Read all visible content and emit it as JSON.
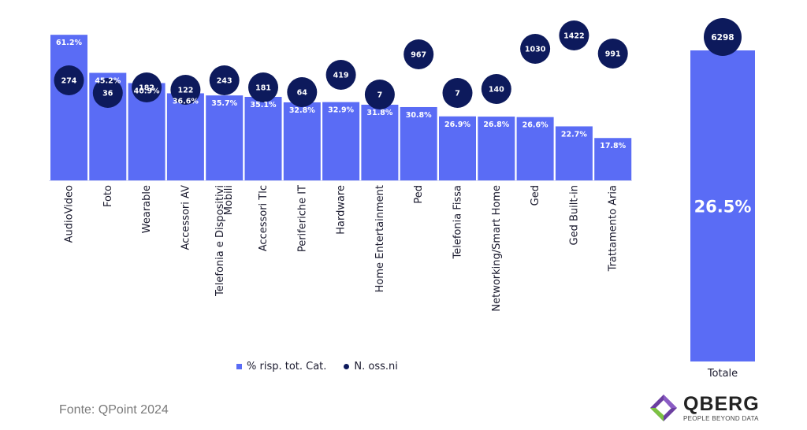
{
  "chart_data": {
    "type": "bar",
    "categories": [
      "AudioVideo",
      "Foto",
      "Wearable",
      "Accessori AV",
      "Telefonia e Dispositivi Mobili",
      "Accessori Tlc",
      "Periferiche IT",
      "Hardware",
      "Home Entertainment",
      "Ped",
      "Telefonia Fissa",
      "Networking/Smart Home",
      "Ged",
      "Ged Built-in",
      "Trattamento Aria"
    ],
    "category_lines": [
      [
        "AudioVideo"
      ],
      [
        "Foto"
      ],
      [
        "Wearable"
      ],
      [
        "Accessori AV"
      ],
      [
        "Telefonia e Dispositivi",
        "Mobili"
      ],
      [
        "Accessori Tlc"
      ],
      [
        "Periferiche IT"
      ],
      [
        "Hardware"
      ],
      [
        "Home Entertainment"
      ],
      [
        "Ped"
      ],
      [
        "Telefonia Fissa"
      ],
      [
        "Networking/Smart Home"
      ],
      [
        "Ged"
      ],
      [
        "Ged Built-in"
      ],
      [
        "Trattamento Aria"
      ]
    ],
    "series": [
      {
        "name": "% risp. tot. Cat.",
        "values": [
          61.2,
          45.2,
          40.9,
          36.6,
          35.7,
          35.1,
          32.8,
          32.9,
          31.8,
          30.8,
          26.9,
          26.8,
          26.6,
          22.7,
          17.8
        ],
        "labels": [
          "61.2%",
          "45.2%",
          "40.9%",
          "36.6%",
          "35.7%",
          "35.1%",
          "32.8%",
          "32.9%",
          "31.8%",
          "30.8%",
          "26.9%",
          "26.8%",
          "26.6%",
          "22.7%",
          "17.8%"
        ]
      },
      {
        "name": "N. oss.ni",
        "values": [
          274,
          36,
          182,
          122,
          243,
          181,
          64,
          419,
          7,
          967,
          7,
          140,
          1030,
          1422,
          991
        ],
        "labels": [
          "274",
          "36",
          "182",
          "122",
          "243",
          "181",
          "64",
          "419",
          "7",
          "967",
          "7",
          "140",
          "1030",
          "1422",
          "991"
        ]
      }
    ],
    "total": {
      "category": "Totale",
      "value": 26.5,
      "label": "26.5%",
      "observations": 6298,
      "observations_label": "6298"
    },
    "legend_position": "bottom",
    "grid": false,
    "colors": {
      "bar": "#5a6cf5",
      "dot": "#0d1a5c",
      "bar_label": "#ffffff"
    }
  },
  "source": "Fonte: QPoint 2024",
  "logo": {
    "name": "QBERG",
    "tagline": "PEOPLE BEYOND DATA"
  }
}
